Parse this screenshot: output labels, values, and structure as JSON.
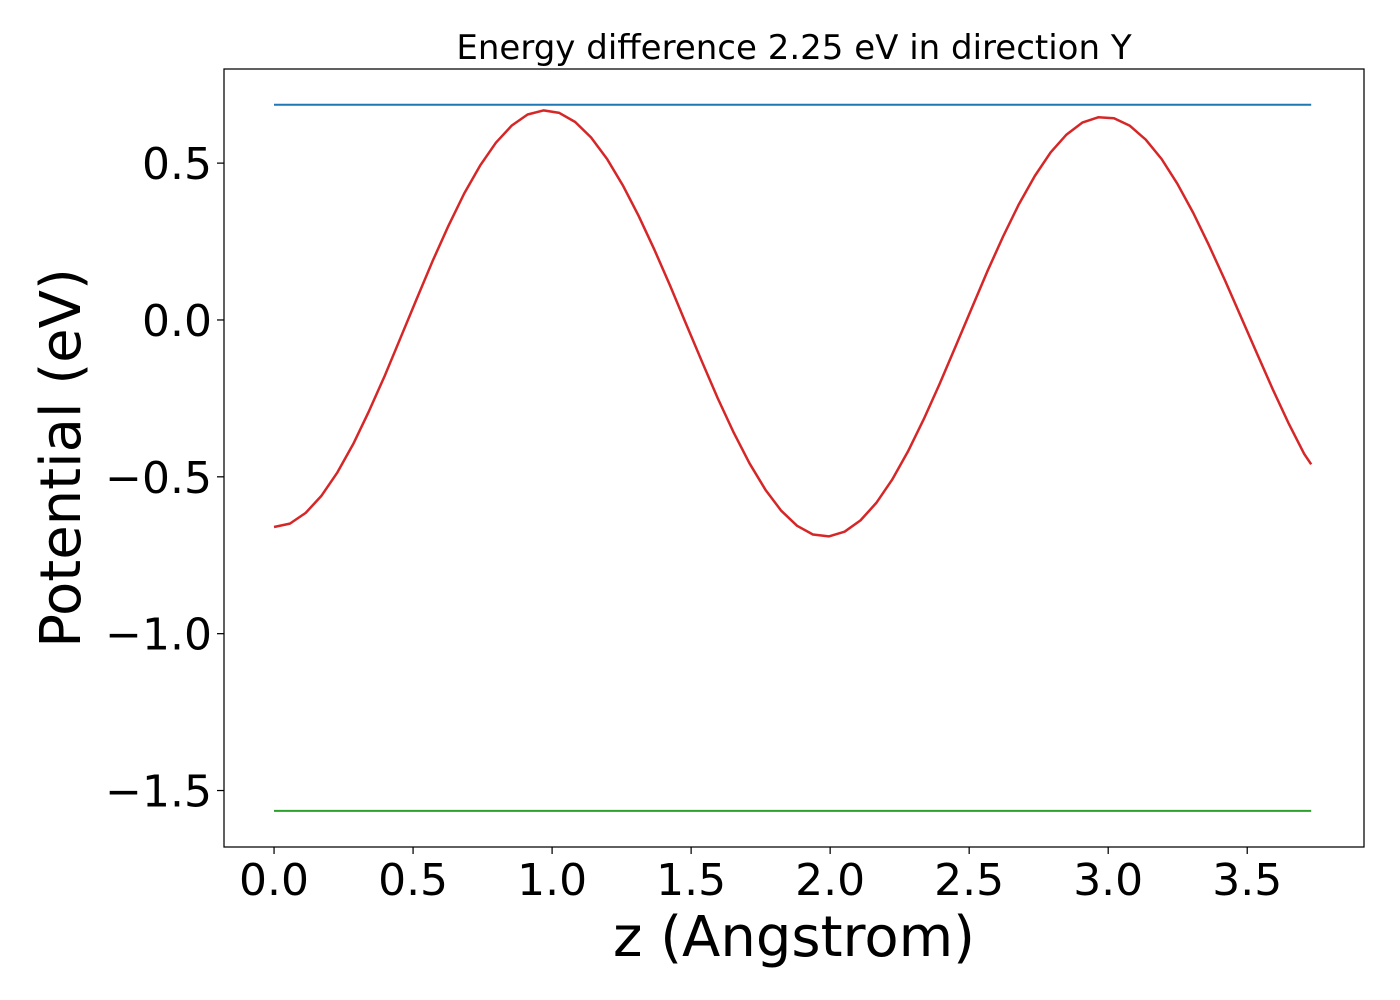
{
  "chart_data": {
    "type": "line",
    "title": "Energy difference 2.25 eV in direction Y",
    "xlabel": "z (Angstrom)",
    "ylabel": "Potential (eV)",
    "xlim": [
      -0.18,
      3.92
    ],
    "ylim": [
      -1.68,
      0.8
    ],
    "grid": false,
    "x_ticks": [
      0.0,
      0.5,
      1.0,
      1.5,
      2.0,
      2.5,
      3.0,
      3.5
    ],
    "x_tick_labels": [
      "0.0",
      "0.5",
      "1.0",
      "1.5",
      "2.0",
      "2.5",
      "3.0",
      "3.5"
    ],
    "y_ticks": [
      0.5,
      0.0,
      -0.5,
      -1.0,
      -1.5
    ],
    "y_tick_labels": [
      "0.5",
      "0.0",
      "−0.5",
      "−1.0",
      "−1.5"
    ],
    "series": [
      {
        "color": "#1f77b4",
        "x": [
          0.0,
          3.73
        ],
        "y": [
          0.686,
          0.686
        ]
      },
      {
        "color": "#2ca02c",
        "x": [
          0.0,
          3.73
        ],
        "y": [
          -1.565,
          -1.565
        ]
      },
      {
        "color": "#d62728",
        "x": [
          0.0,
          0.057,
          0.114,
          0.171,
          0.228,
          0.285,
          0.342,
          0.399,
          0.456,
          0.513,
          0.57,
          0.627,
          0.684,
          0.741,
          0.798,
          0.855,
          0.912,
          0.969,
          1.026,
          1.083,
          1.14,
          1.197,
          1.254,
          1.311,
          1.368,
          1.425,
          1.482,
          1.539,
          1.596,
          1.653,
          1.71,
          1.767,
          1.824,
          1.881,
          1.938,
          1.995,
          2.052,
          2.109,
          2.166,
          2.223,
          2.28,
          2.337,
          2.394,
          2.451,
          2.508,
          2.565,
          2.622,
          2.679,
          2.736,
          2.793,
          2.85,
          2.907,
          2.964,
          3.021,
          3.078,
          3.135,
          3.192,
          3.249,
          3.306,
          3.363,
          3.42,
          3.477,
          3.534,
          3.591,
          3.648,
          3.705,
          3.73
        ],
        "y": [
          -0.66,
          -0.649,
          -0.615,
          -0.56,
          -0.486,
          -0.395,
          -0.29,
          -0.176,
          -0.055,
          0.067,
          0.187,
          0.3,
          0.403,
          0.492,
          0.565,
          0.62,
          0.655,
          0.668,
          0.66,
          0.631,
          0.582,
          0.514,
          0.43,
          0.332,
          0.224,
          0.108,
          -0.013,
          -0.133,
          -0.25,
          -0.359,
          -0.457,
          -0.541,
          -0.608,
          -0.656,
          -0.684,
          -0.69,
          -0.675,
          -0.639,
          -0.583,
          -0.509,
          -0.419,
          -0.316,
          -0.203,
          -0.085,
          0.035,
          0.154,
          0.266,
          0.369,
          0.459,
          0.534,
          0.591,
          0.629,
          0.646,
          0.643,
          0.619,
          0.575,
          0.513,
          0.434,
          0.341,
          0.237,
          0.126,
          0.011,
          -0.105,
          -0.219,
          -0.328,
          -0.427,
          -0.46
        ]
      }
    ]
  }
}
